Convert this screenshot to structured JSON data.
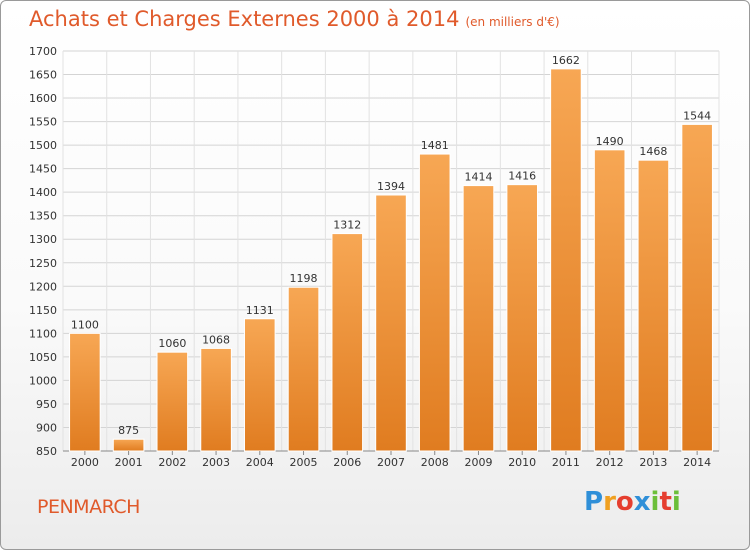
{
  "header": {
    "title": "Achats et Charges Externes 2000 à 2014",
    "subtitle": "(en milliers d'€)"
  },
  "footer": {
    "commune": "PENMARCH",
    "logo_letters": [
      "P",
      "r",
      "o",
      "x",
      "i",
      "t",
      "i"
    ],
    "logo_colors": [
      "#2f8fd8",
      "#f0a020",
      "#e53e2f",
      "#2f8fd8",
      "#6cbf3a",
      "#e53e2f",
      "#6cbf3a"
    ]
  },
  "chart_data": {
    "type": "bar",
    "categories": [
      "2000",
      "2001",
      "2002",
      "2003",
      "2004",
      "2005",
      "2006",
      "2007",
      "2008",
      "2009",
      "2010",
      "2011",
      "2012",
      "2013",
      "2014"
    ],
    "values": [
      1100,
      875,
      1060,
      1068,
      1131,
      1198,
      1312,
      1394,
      1481,
      1414,
      1416,
      1662,
      1490,
      1468,
      1544
    ],
    "ylim": [
      850,
      1700
    ],
    "yticks": [
      850,
      900,
      950,
      1000,
      1050,
      1100,
      1150,
      1200,
      1250,
      1300,
      1350,
      1400,
      1450,
      1500,
      1550,
      1600,
      1650,
      1700
    ],
    "grid": true,
    "bar_color_top": "#f7a754",
    "bar_color_bottom": "#e07c20"
  }
}
